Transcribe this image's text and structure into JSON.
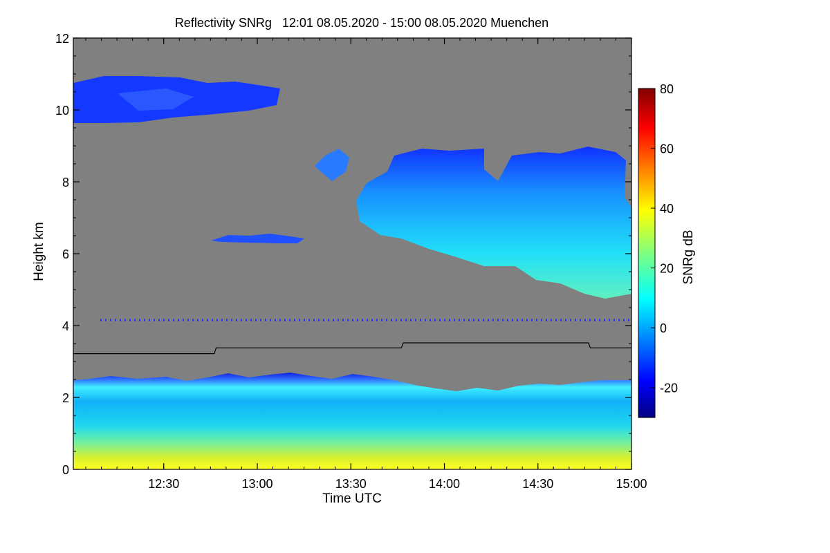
{
  "chart_data": {
    "type": "heatmap",
    "title": "Reflectivity SNRg   12:01 08.05.2020 - 15:00 08.05.2020 Muenchen",
    "xlabel": "Time UTC",
    "ylabel": "Height km",
    "x_range_hours": [
      12.0167,
      15.0
    ],
    "x_ticks": [
      {
        "hour": 12.5,
        "label": "12:30"
      },
      {
        "hour": 13.0,
        "label": "13:00"
      },
      {
        "hour": 13.5,
        "label": "13:30"
      },
      {
        "hour": 14.0,
        "label": "14:00"
      },
      {
        "hour": 14.5,
        "label": "14:30"
      },
      {
        "hour": 15.0,
        "label": "15:00"
      }
    ],
    "ylim": [
      0,
      12
    ],
    "y_ticks": [
      {
        "value": 0,
        "label": "0"
      },
      {
        "value": 2,
        "label": "2"
      },
      {
        "value": 4,
        "label": "4"
      },
      {
        "value": 6,
        "label": "6"
      },
      {
        "value": 8,
        "label": "8"
      },
      {
        "value": 10,
        "label": "10"
      },
      {
        "value": 12,
        "label": "12"
      }
    ],
    "colorbar": {
      "label": "SNRg dB",
      "range": [
        -30,
        80
      ],
      "ticks": [
        {
          "value": -20,
          "label": "-20"
        },
        {
          "value": 0,
          "label": "0"
        },
        {
          "value": 20,
          "label": "20"
        },
        {
          "value": 40,
          "label": "40"
        },
        {
          "value": 60,
          "label": "60"
        },
        {
          "value": 80,
          "label": "80"
        }
      ]
    },
    "background_color": "#808080",
    "line_series": {
      "name": "boundary height",
      "points": [
        [
          12.0167,
          3.22
        ],
        [
          12.77,
          3.22
        ],
        [
          12.78,
          3.38
        ],
        [
          13.77,
          3.38
        ],
        [
          13.78,
          3.52
        ],
        [
          14.77,
          3.52
        ],
        [
          14.78,
          3.38
        ],
        [
          15.0,
          3.38
        ]
      ]
    },
    "regions": [
      {
        "name": "cirrus-layer",
        "t0": 12.02,
        "t1": 13.13,
        "h0": 9.6,
        "h1": 10.9,
        "db": -15
      },
      {
        "name": "mid-level-cloud-streaks",
        "t0": 13.55,
        "t1": 15.0,
        "h0": 4.7,
        "h1": 8.8,
        "db": 15
      },
      {
        "name": "thin-cloud-6km",
        "t0": 12.75,
        "t1": 13.27,
        "h0": 6.3,
        "h1": 6.5,
        "db": -10
      },
      {
        "name": "noise-line-4km",
        "t0": 12.17,
        "t1": 15.0,
        "h0": 4.1,
        "h1": 4.2,
        "db": -20
      },
      {
        "name": "boundary-layer",
        "t0": 12.02,
        "t1": 15.0,
        "h0": 0.0,
        "h1": 2.4,
        "db": 25
      }
    ]
  }
}
